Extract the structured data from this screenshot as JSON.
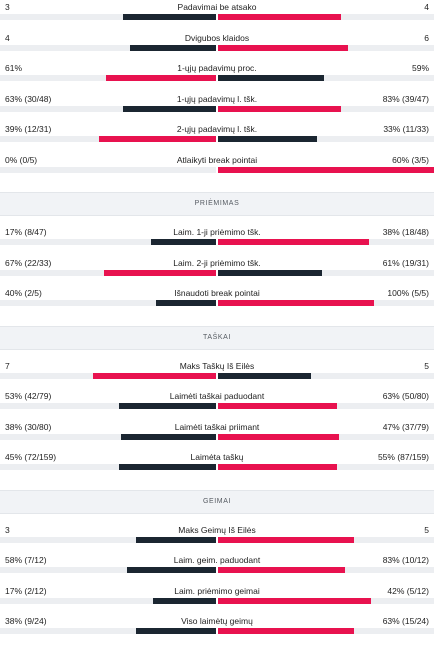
{
  "colors": {
    "dark": "#1b2631",
    "red": "#e8124f"
  },
  "sections": [
    {
      "header": null,
      "rows": [
        {
          "label": "Padavimai be atsako",
          "left": "3",
          "right": "4",
          "left_pct": 0.43,
          "right_pct": 0.57,
          "left_color": "dark",
          "right_color": "red"
        },
        {
          "label": "Dvigubos klaidos",
          "left": "4",
          "right": "6",
          "left_pct": 0.4,
          "right_pct": 0.6,
          "left_color": "dark",
          "right_color": "red"
        },
        {
          "label": "1-ųjų padavimų proc.",
          "left": "61%",
          "right": "59%",
          "left_pct": 0.51,
          "right_pct": 0.49,
          "left_color": "red",
          "right_color": "dark"
        },
        {
          "label": "1-ųjų padavimų l. tšk.",
          "left": "63% (30/48)",
          "right": "83% (39/47)",
          "left_pct": 0.43,
          "right_pct": 0.57,
          "left_color": "dark",
          "right_color": "red"
        },
        {
          "label": "2-ųjų padavimų l. tšk.",
          "left": "39% (12/31)",
          "right": "33% (11/33)",
          "left_pct": 0.54,
          "right_pct": 0.46,
          "left_color": "red",
          "right_color": "dark"
        },
        {
          "label": "Atlaikyti break pointai",
          "left": "0% (0/5)",
          "right": "60% (3/5)",
          "left_pct": 0.0,
          "right_pct": 1.0,
          "left_color": "dark",
          "right_color": "red"
        }
      ]
    },
    {
      "header": "PRIĖMIMAS",
      "rows": [
        {
          "label": "Laim. 1-ji priėmimo tšk.",
          "left": "17% (8/47)",
          "right": "38% (18/48)",
          "left_pct": 0.3,
          "right_pct": 0.7,
          "left_color": "dark",
          "right_color": "red"
        },
        {
          "label": "Laim. 2-ji priėmimo tšk.",
          "left": "67% (22/33)",
          "right": "61% (19/31)",
          "left_pct": 0.52,
          "right_pct": 0.48,
          "left_color": "red",
          "right_color": "dark"
        },
        {
          "label": "Išnaudoti break pointai",
          "left": "40% (2/5)",
          "right": "100% (5/5)",
          "left_pct": 0.28,
          "right_pct": 0.72,
          "left_color": "dark",
          "right_color": "red"
        }
      ]
    },
    {
      "header": "TAŠKAI",
      "rows": [
        {
          "label": "Maks Taškų Iš Eilės",
          "left": "7",
          "right": "5",
          "left_pct": 0.57,
          "right_pct": 0.43,
          "left_color": "red",
          "right_color": "dark"
        },
        {
          "label": "Laimėti taškai paduodant",
          "left": "53% (42/79)",
          "right": "63% (50/80)",
          "left_pct": 0.45,
          "right_pct": 0.55,
          "left_color": "dark",
          "right_color": "red"
        },
        {
          "label": "Laimėti taškai priimant",
          "left": "38% (30/80)",
          "right": "47% (37/79)",
          "left_pct": 0.44,
          "right_pct": 0.56,
          "left_color": "dark",
          "right_color": "red"
        },
        {
          "label": "Laimėta taškų",
          "left": "45% (72/159)",
          "right": "55% (87/159)",
          "left_pct": 0.45,
          "right_pct": 0.55,
          "left_color": "dark",
          "right_color": "red"
        }
      ]
    },
    {
      "header": "GEIMAI",
      "rows": [
        {
          "label": "Maks Geimų Iš Eilės",
          "left": "3",
          "right": "5",
          "left_pct": 0.37,
          "right_pct": 0.63,
          "left_color": "dark",
          "right_color": "red"
        },
        {
          "label": "Laim. geim. paduodant",
          "left": "58% (7/12)",
          "right": "83% (10/12)",
          "left_pct": 0.41,
          "right_pct": 0.59,
          "left_color": "dark",
          "right_color": "red"
        },
        {
          "label": "Laim. priėmimo geimai",
          "left": "17% (2/12)",
          "right": "42% (5/12)",
          "left_pct": 0.29,
          "right_pct": 0.71,
          "left_color": "dark",
          "right_color": "red"
        },
        {
          "label": "Viso laimėtų geimų",
          "left": "38% (9/24)",
          "right": "63% (15/24)",
          "left_pct": 0.37,
          "right_pct": 0.63,
          "left_color": "dark",
          "right_color": "red"
        }
      ]
    }
  ]
}
